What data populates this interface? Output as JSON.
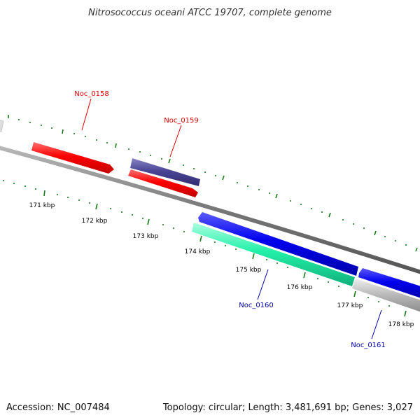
{
  "title": "Nitrosococcus oceani ATCC 19707, complete genome",
  "accession": "Accession: NC_007484",
  "topology": "Topology: circular; Length: 3,481,691 bp; Genes: 3,027",
  "ticks": [
    "171 kbp",
    "172 kbp",
    "173 kbp",
    "174 kbp",
    "175 kbp",
    "176 kbp",
    "177 kbp",
    "178 kbp"
  ],
  "genes": [
    {
      "name": "Noc_0158",
      "color": "#dd0000"
    },
    {
      "name": "Noc_0159",
      "color": "#dd0000"
    },
    {
      "name": "Noc_0160",
      "color": "#0000aa"
    },
    {
      "name": "Noc_0161",
      "color": "#0000aa"
    }
  ],
  "colors": {
    "forward_feature": "#ff0000",
    "forward_feature_alt": "#4b4694",
    "reverse_feature": "#0000ee",
    "reverse_feature_alt": "#22f0a8",
    "other_feature": "#bbbbbb",
    "backbone": "#888888",
    "tick": "#1a7a1a"
  }
}
